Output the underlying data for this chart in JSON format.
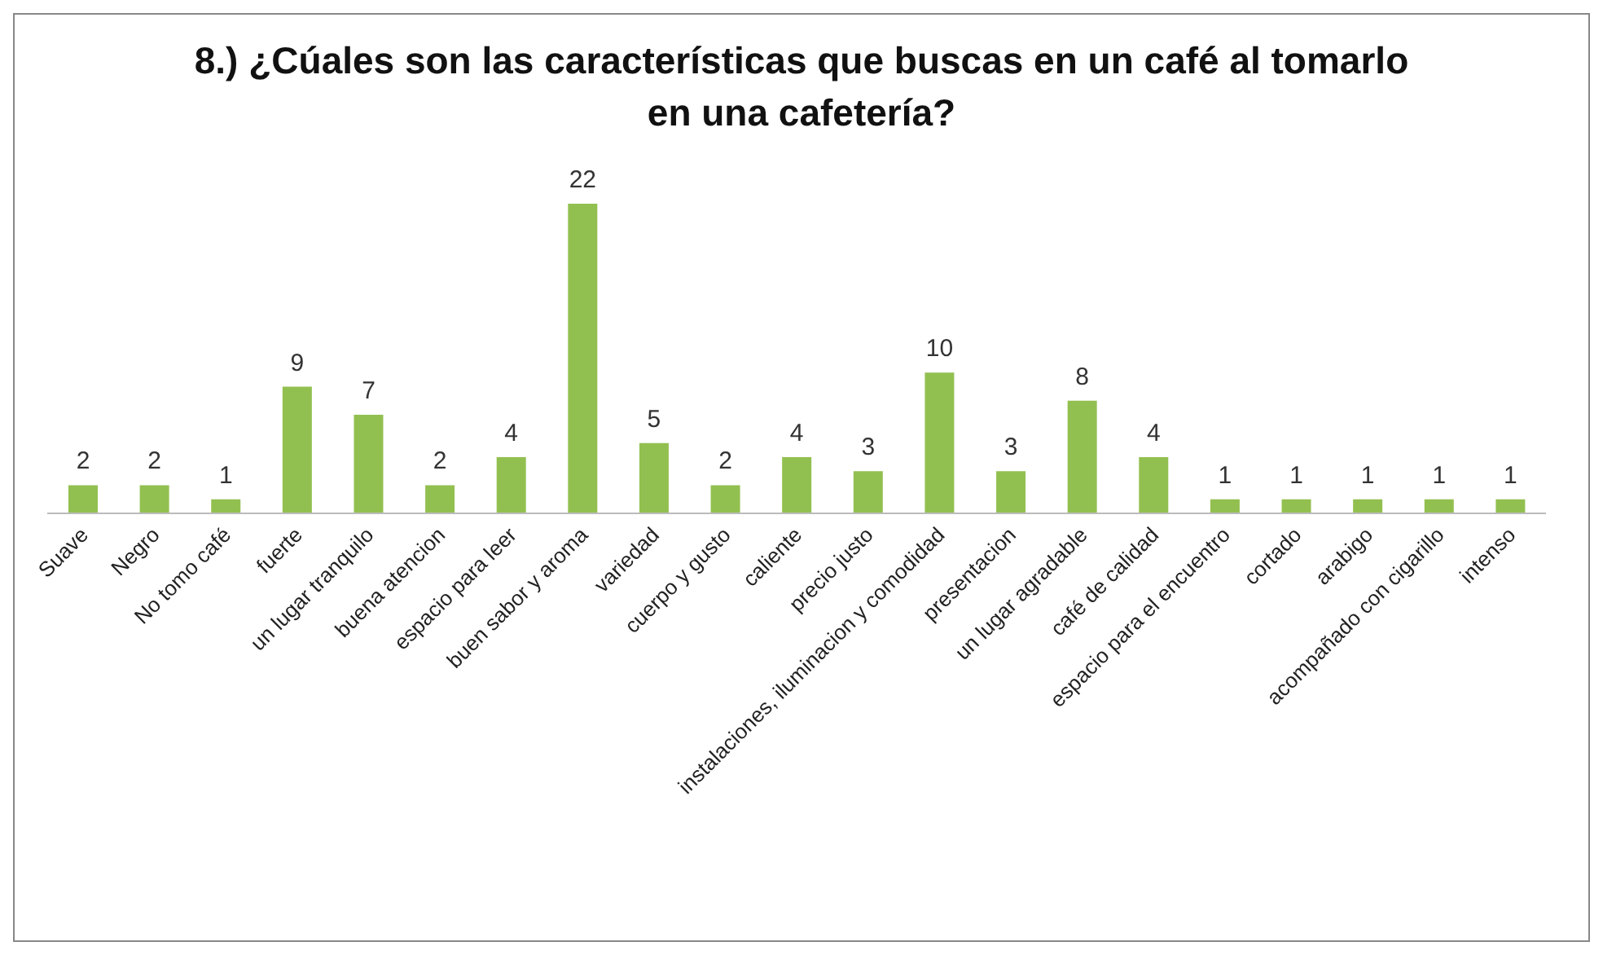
{
  "chart_data": {
    "type": "bar",
    "title": "8.) ¿Cúales son las características que buscas en un café al tomarlo en una cafetería?",
    "categories": [
      "Suave",
      "Negro",
      "No tomo café",
      "fuerte",
      "un lugar tranquilo",
      "buena atencion",
      "espacio para leer",
      "buen sabor y aroma",
      "variedad",
      "cuerpo y gusto",
      "caliente",
      "precio justo",
      "instalaciones, iluminacion y comodidad",
      "presentacion",
      "un lugar agradable",
      "café de calidad",
      "espacio para el encuentro",
      "cortado",
      "arabigo",
      "acompañado con cigarillo",
      "intenso"
    ],
    "values": [
      2,
      2,
      1,
      9,
      7,
      2,
      4,
      22,
      5,
      2,
      4,
      3,
      10,
      3,
      8,
      4,
      1,
      1,
      1,
      1,
      1
    ],
    "color": "#92c050",
    "data_labels": true,
    "grid": false,
    "legend": false
  }
}
